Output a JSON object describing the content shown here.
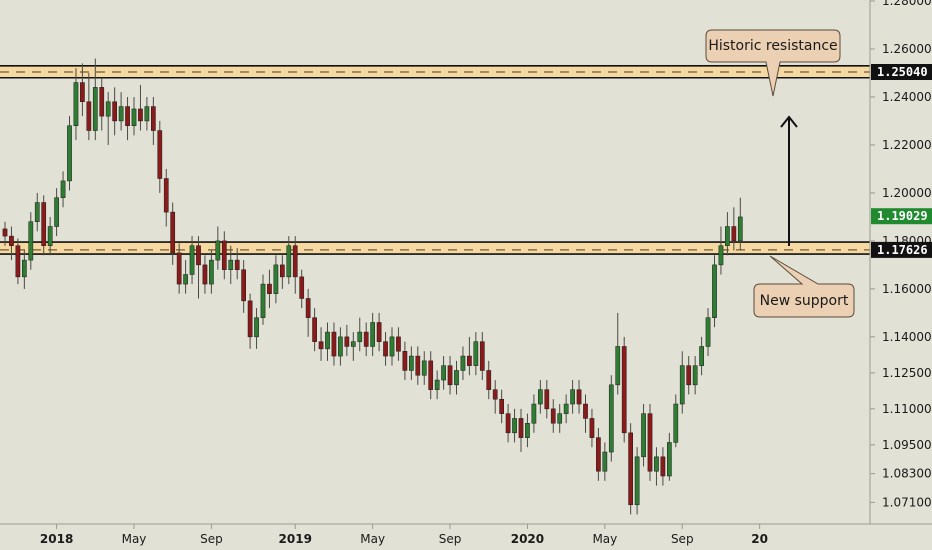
{
  "colors": {
    "background": "#e2e1d6",
    "bull": "#2e7d32",
    "bear": "#8b1a1a",
    "zone_fill": "#f5d9a0",
    "zone_border": "#111111",
    "callout_fill": "#ecd0b3",
    "price_badge_bg": "#1f8a2e",
    "level_badge_bg": "#111111"
  },
  "annotations": {
    "resistance_label": "Historic resistance",
    "support_label": "New support"
  },
  "badges": {
    "current_price": "1.19029",
    "resistance_level": "1.25040",
    "support_level": "1.17626"
  },
  "chart_data": {
    "type": "candlestick",
    "ylim": [
      1.062,
      1.295
    ],
    "y_ticks": [
      "1.28000",
      "1.26000",
      "1.24000",
      "1.22000",
      "1.20000",
      "1.18000",
      "1.16000",
      "1.14000",
      "1.12500",
      "1.11000",
      "1.09500",
      "1.08300",
      "1.07100"
    ],
    "y_tick_values": [
      1.28,
      1.26,
      1.24,
      1.22,
      1.2,
      1.18,
      1.16,
      1.14,
      1.125,
      1.11,
      1.095,
      1.083,
      1.071
    ],
    "x_ticks": [
      "2018",
      "May",
      "Sep",
      "2019",
      "May",
      "Sep",
      "2020",
      "May",
      "Sep",
      "20"
    ],
    "x_tick_bold": [
      true,
      false,
      false,
      true,
      false,
      false,
      true,
      false,
      false,
      true
    ],
    "x_tick_index": [
      8,
      20,
      32,
      45,
      57,
      69,
      81,
      93,
      105,
      117
    ],
    "zones": [
      {
        "name": "resistance",
        "low": 1.248,
        "high": 1.253,
        "mid": 1.2504
      },
      {
        "name": "support",
        "low": 1.1745,
        "high": 1.1795,
        "mid": 1.17626
      }
    ],
    "candles": [
      [
        1.185,
        1.182,
        1.188,
        1.178
      ],
      [
        1.182,
        1.178,
        1.186,
        1.172
      ],
      [
        1.178,
        1.165,
        1.181,
        1.162
      ],
      [
        1.165,
        1.172,
        1.176,
        1.16
      ],
      [
        1.172,
        1.188,
        1.192,
        1.168
      ],
      [
        1.188,
        1.196,
        1.2,
        1.184
      ],
      [
        1.196,
        1.178,
        1.199,
        1.174
      ],
      [
        1.178,
        1.186,
        1.19,
        1.174
      ],
      [
        1.186,
        1.198,
        1.202,
        1.182
      ],
      [
        1.198,
        1.205,
        1.209,
        1.194
      ],
      [
        1.205,
        1.228,
        1.232,
        1.201
      ],
      [
        1.228,
        1.246,
        1.252,
        1.222
      ],
      [
        1.246,
        1.238,
        1.254,
        1.232
      ],
      [
        1.238,
        1.226,
        1.25,
        1.222
      ],
      [
        1.226,
        1.244,
        1.256,
        1.222
      ],
      [
        1.244,
        1.232,
        1.248,
        1.226
      ],
      [
        1.232,
        1.238,
        1.242,
        1.22
      ],
      [
        1.238,
        1.23,
        1.244,
        1.224
      ],
      [
        1.23,
        1.236,
        1.242,
        1.226
      ],
      [
        1.236,
        1.228,
        1.24,
        1.222
      ],
      [
        1.228,
        1.235,
        1.24,
        1.224
      ],
      [
        1.235,
        1.23,
        1.245,
        1.226
      ],
      [
        1.23,
        1.236,
        1.24,
        1.226
      ],
      [
        1.236,
        1.226,
        1.24,
        1.22
      ],
      [
        1.226,
        1.206,
        1.23,
        1.2
      ],
      [
        1.206,
        1.192,
        1.21,
        1.186
      ],
      [
        1.192,
        1.175,
        1.196,
        1.17
      ],
      [
        1.175,
        1.162,
        1.179,
        1.158
      ],
      [
        1.162,
        1.166,
        1.172,
        1.158
      ],
      [
        1.166,
        1.178,
        1.182,
        1.162
      ],
      [
        1.178,
        1.17,
        1.182,
        1.156
      ],
      [
        1.17,
        1.162,
        1.174,
        1.158
      ],
      [
        1.162,
        1.172,
        1.176,
        1.158
      ],
      [
        1.172,
        1.18,
        1.186,
        1.168
      ],
      [
        1.18,
        1.168,
        1.184,
        1.164
      ],
      [
        1.168,
        1.172,
        1.178,
        1.162
      ],
      [
        1.172,
        1.168,
        1.177,
        1.164
      ],
      [
        1.168,
        1.155,
        1.172,
        1.15
      ],
      [
        1.155,
        1.14,
        1.158,
        1.135
      ],
      [
        1.14,
        1.148,
        1.152,
        1.135
      ],
      [
        1.148,
        1.162,
        1.166,
        1.145
      ],
      [
        1.162,
        1.158,
        1.168,
        1.152
      ],
      [
        1.158,
        1.17,
        1.174,
        1.154
      ],
      [
        1.17,
        1.165,
        1.174,
        1.16
      ],
      [
        1.165,
        1.178,
        1.182,
        1.162
      ],
      [
        1.178,
        1.165,
        1.182,
        1.158
      ],
      [
        1.165,
        1.156,
        1.168,
        1.152
      ],
      [
        1.156,
        1.148,
        1.16,
        1.14
      ],
      [
        1.148,
        1.138,
        1.152,
        1.134
      ],
      [
        1.138,
        1.135,
        1.144,
        1.13
      ],
      [
        1.135,
        1.142,
        1.146,
        1.13
      ],
      [
        1.142,
        1.132,
        1.146,
        1.128
      ],
      [
        1.132,
        1.14,
        1.144,
        1.128
      ],
      [
        1.14,
        1.136,
        1.145,
        1.132
      ],
      [
        1.136,
        1.138,
        1.142,
        1.13
      ],
      [
        1.138,
        1.142,
        1.148,
        1.134
      ],
      [
        1.142,
        1.136,
        1.146,
        1.132
      ],
      [
        1.136,
        1.146,
        1.15,
        1.132
      ],
      [
        1.146,
        1.138,
        1.15,
        1.134
      ],
      [
        1.138,
        1.132,
        1.142,
        1.128
      ],
      [
        1.132,
        1.14,
        1.144,
        1.128
      ],
      [
        1.14,
        1.134,
        1.144,
        1.13
      ],
      [
        1.134,
        1.126,
        1.138,
        1.122
      ],
      [
        1.126,
        1.132,
        1.136,
        1.122
      ],
      [
        1.132,
        1.124,
        1.136,
        1.12
      ],
      [
        1.124,
        1.13,
        1.134,
        1.12
      ],
      [
        1.13,
        1.118,
        1.134,
        1.114
      ],
      [
        1.118,
        1.122,
        1.126,
        1.114
      ],
      [
        1.122,
        1.128,
        1.132,
        1.118
      ],
      [
        1.128,
        1.12,
        1.132,
        1.116
      ],
      [
        1.12,
        1.126,
        1.13,
        1.116
      ],
      [
        1.126,
        1.132,
        1.136,
        1.122
      ],
      [
        1.132,
        1.128,
        1.14,
        1.124
      ],
      [
        1.128,
        1.138,
        1.142,
        1.124
      ],
      [
        1.138,
        1.126,
        1.142,
        1.122
      ],
      [
        1.126,
        1.118,
        1.13,
        1.114
      ],
      [
        1.118,
        1.114,
        1.122,
        1.108
      ],
      [
        1.114,
        1.108,
        1.118,
        1.104
      ],
      [
        1.108,
        1.1,
        1.112,
        1.096
      ],
      [
        1.1,
        1.106,
        1.11,
        1.096
      ],
      [
        1.106,
        1.098,
        1.11,
        1.092
      ],
      [
        1.098,
        1.104,
        1.108,
        1.094
      ],
      [
        1.104,
        1.112,
        1.116,
        1.1
      ],
      [
        1.112,
        1.118,
        1.122,
        1.108
      ],
      [
        1.118,
        1.11,
        1.122,
        1.106
      ],
      [
        1.11,
        1.104,
        1.114,
        1.1
      ],
      [
        1.104,
        1.108,
        1.112,
        1.1
      ],
      [
        1.108,
        1.112,
        1.116,
        1.104
      ],
      [
        1.112,
        1.118,
        1.122,
        1.108
      ],
      [
        1.118,
        1.112,
        1.122,
        1.108
      ],
      [
        1.112,
        1.106,
        1.116,
        1.1
      ],
      [
        1.106,
        1.098,
        1.11,
        1.094
      ],
      [
        1.098,
        1.084,
        1.102,
        1.08
      ],
      [
        1.084,
        1.092,
        1.096,
        1.08
      ],
      [
        1.092,
        1.12,
        1.124,
        1.088
      ],
      [
        1.12,
        1.136,
        1.15,
        1.116
      ],
      [
        1.136,
        1.1,
        1.14,
        1.096
      ],
      [
        1.1,
        1.07,
        1.104,
        1.066
      ],
      [
        1.07,
        1.09,
        1.094,
        1.066
      ],
      [
        1.09,
        1.108,
        1.112,
        1.086
      ],
      [
        1.108,
        1.084,
        1.112,
        1.08
      ],
      [
        1.084,
        1.09,
        1.094,
        1.078
      ],
      [
        1.09,
        1.082,
        1.094,
        1.078
      ],
      [
        1.082,
        1.096,
        1.1,
        1.08
      ],
      [
        1.096,
        1.112,
        1.116,
        1.094
      ],
      [
        1.112,
        1.128,
        1.134,
        1.108
      ],
      [
        1.128,
        1.12,
        1.132,
        1.116
      ],
      [
        1.12,
        1.128,
        1.132,
        1.116
      ],
      [
        1.128,
        1.136,
        1.14,
        1.124
      ],
      [
        1.136,
        1.148,
        1.152,
        1.132
      ],
      [
        1.148,
        1.17,
        1.174,
        1.144
      ],
      [
        1.17,
        1.178,
        1.186,
        1.166
      ],
      [
        1.178,
        1.186,
        1.192,
        1.174
      ],
      [
        1.186,
        1.18,
        1.194,
        1.176
      ],
      [
        1.18,
        1.19,
        1.198,
        1.176
      ]
    ]
  }
}
